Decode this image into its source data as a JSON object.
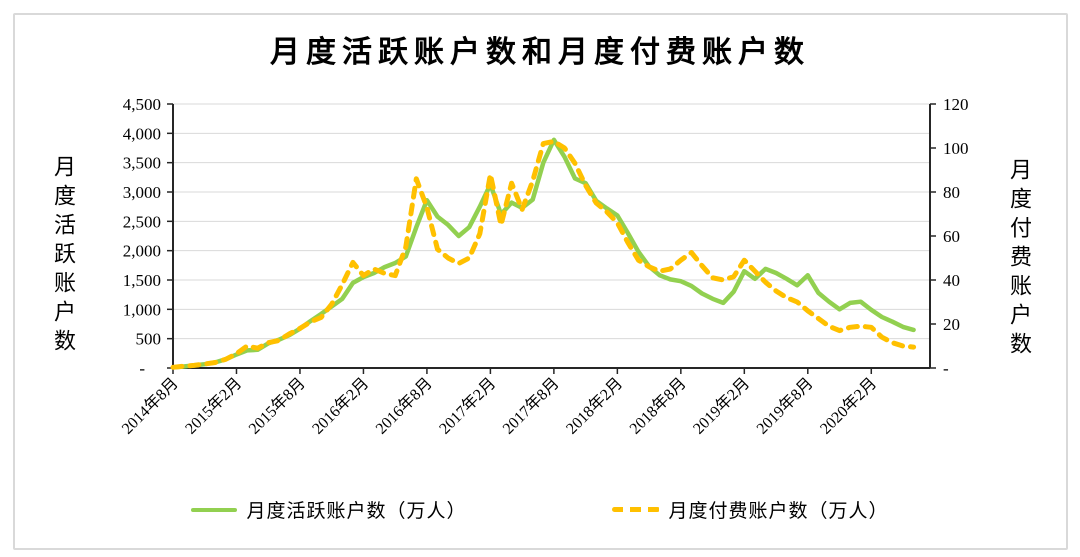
{
  "colors": {
    "active_line": "#92d050",
    "paid_line": "#ffc000",
    "grid": "#d9d9d9",
    "axis": "#262626",
    "frame_border": "#d9d9d9",
    "background": "#ffffff"
  },
  "chart_data": {
    "type": "line",
    "title": "月度活跃账户数和月度付费账户数",
    "grid": true,
    "legend_position": "bottom",
    "left_axis": {
      "title": "月度活跃账户数",
      "min": 0,
      "max": 4500,
      "step": 500,
      "tick_labels": [
        "-",
        "500",
        "1,000",
        "1,500",
        "2,000",
        "2,500",
        "3,000",
        "3,500",
        "4,000",
        "4,500"
      ]
    },
    "right_axis": {
      "title": "月度付费账户数",
      "min": 0,
      "max": 120,
      "step": 20,
      "tick_labels": [
        "-",
        "20",
        "40",
        "60",
        "80",
        "100",
        "120"
      ]
    },
    "x_tick_labels": [
      "2014年8月",
      "2015年2月",
      "2015年8月",
      "2016年2月",
      "2016年8月",
      "2017年2月",
      "2017年8月",
      "2018年2月",
      "2018年8月",
      "2019年2月",
      "2019年8月",
      "2020年2月"
    ],
    "x_tick_every": 6,
    "x": [
      "2014-08",
      "2014-09",
      "2014-10",
      "2014-11",
      "2014-12",
      "2015-01",
      "2015-02",
      "2015-03",
      "2015-04",
      "2015-05",
      "2015-06",
      "2015-07",
      "2015-08",
      "2015-09",
      "2015-10",
      "2015-11",
      "2015-12",
      "2016-01",
      "2016-02",
      "2016-03",
      "2016-04",
      "2016-05",
      "2016-06",
      "2016-07",
      "2016-08",
      "2016-09",
      "2016-10",
      "2016-11",
      "2016-12",
      "2017-01",
      "2017-02",
      "2017-03",
      "2017-04",
      "2017-05",
      "2017-06",
      "2017-07",
      "2017-08",
      "2017-09",
      "2017-10",
      "2017-11",
      "2017-12",
      "2018-01",
      "2018-02",
      "2018-03",
      "2018-04",
      "2018-05",
      "2018-06",
      "2018-07",
      "2018-08",
      "2018-09",
      "2018-10",
      "2018-11",
      "2018-12",
      "2019-01",
      "2019-02",
      "2019-03",
      "2019-04",
      "2019-05",
      "2019-06",
      "2019-07",
      "2019-08",
      "2019-09",
      "2019-10",
      "2019-11",
      "2019-12",
      "2020-01",
      "2020-02",
      "2020-03",
      "2020-04",
      "2020-05",
      "2020-06"
    ],
    "series": [
      {
        "name": "月度活跃账户数（万人）",
        "axis": "left",
        "color": "#92d050",
        "style": "solid",
        "values": [
          10,
          25,
          45,
          65,
          95,
          150,
          230,
          300,
          310,
          420,
          480,
          560,
          670,
          800,
          920,
          1050,
          1180,
          1450,
          1550,
          1620,
          1720,
          1790,
          1900,
          2400,
          2860,
          2580,
          2440,
          2250,
          2400,
          2750,
          3130,
          2620,
          2820,
          2730,
          2870,
          3500,
          3890,
          3600,
          3230,
          3150,
          2850,
          2720,
          2600,
          2300,
          1980,
          1730,
          1580,
          1510,
          1480,
          1400,
          1270,
          1180,
          1110,
          1300,
          1650,
          1520,
          1690,
          1620,
          1520,
          1410,
          1580,
          1280,
          1130,
          1000,
          1110,
          1130,
          990,
          870,
          790,
          700,
          650
        ]
      },
      {
        "name": "月度付费账户数（万人）",
        "axis": "right",
        "color": "#ffc000",
        "style": "dashed",
        "values": [
          0.3,
          0.8,
          1.2,
          1.8,
          2.5,
          4,
          6.5,
          10,
          9,
          11.5,
          12.5,
          15.5,
          18,
          21,
          23,
          29,
          38,
          48,
          42,
          45,
          43,
          42,
          55,
          86,
          73,
          54,
          50,
          47.5,
          50,
          61,
          88,
          65,
          84,
          72,
          85,
          102,
          103,
          100,
          93,
          83,
          75,
          71,
          66,
          57,
          49,
          46,
          44,
          45,
          49,
          52.5,
          46.5,
          41,
          40,
          41.5,
          49,
          44,
          39,
          35,
          32,
          30,
          26,
          22.5,
          19,
          17,
          18.5,
          19,
          18.5,
          14,
          11.5,
          10,
          9.5
        ]
      }
    ]
  },
  "legend": {
    "items": [
      {
        "label": "月度活跃账户数（万人）",
        "swatch": "solid-green-line"
      },
      {
        "label": "月度付费账户数（万人）",
        "swatch": "dashed-yellow-line"
      }
    ]
  }
}
